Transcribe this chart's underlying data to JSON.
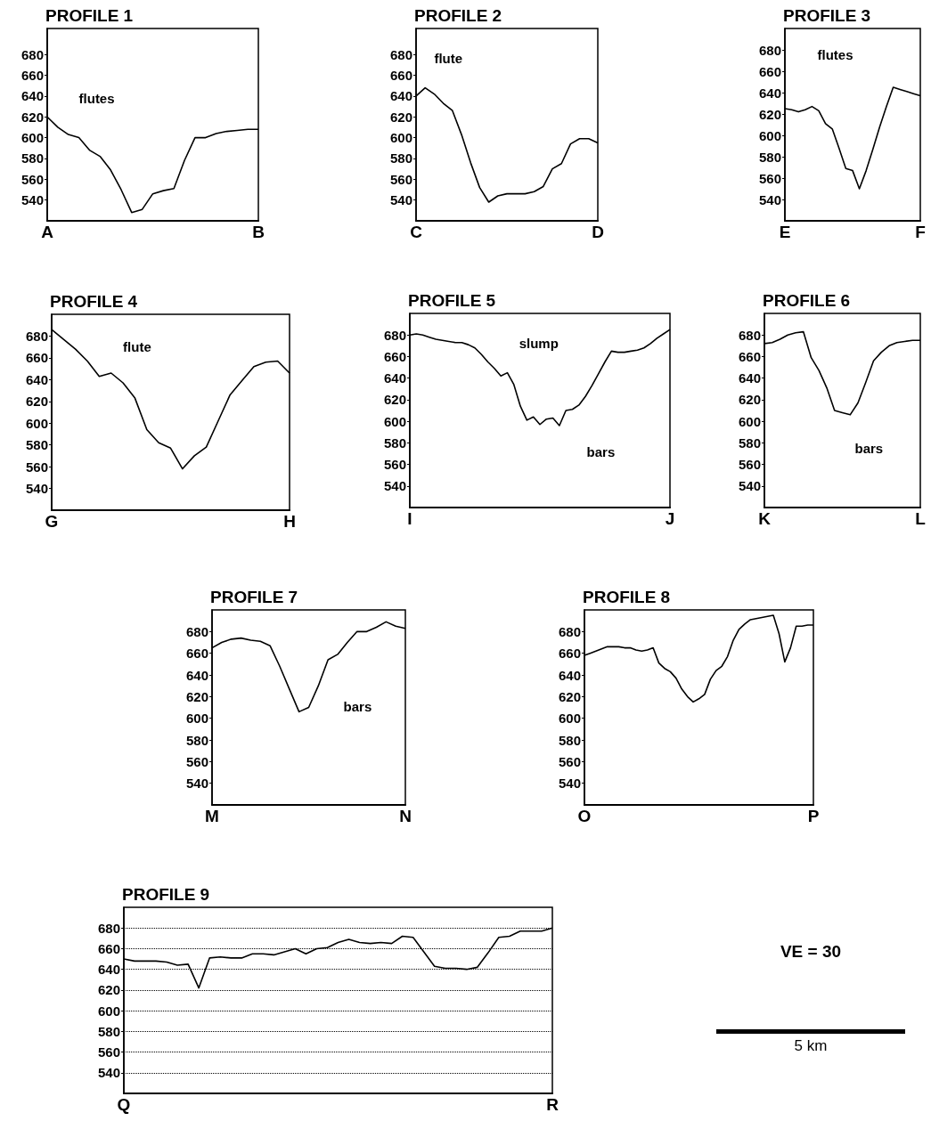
{
  "chart_data": [
    {
      "type": "line",
      "title": "PROFILE 1",
      "categories": [
        "A",
        null,
        null,
        null,
        null,
        null,
        null,
        null,
        null,
        null,
        null,
        null,
        null,
        null,
        null,
        null,
        null,
        null,
        null,
        null,
        "B"
      ],
      "values": [
        620,
        610,
        603,
        600,
        588,
        582,
        569,
        550,
        528,
        531,
        546,
        549,
        551,
        578,
        600,
        600,
        604,
        606,
        607,
        608,
        608
      ],
      "ylim": [
        520,
        705
      ],
      "yticks": [
        540,
        560,
        580,
        600,
        620,
        640,
        660,
        680
      ],
      "marker": "none",
      "annotations": [
        "flutes"
      ]
    },
    {
      "type": "line",
      "title": "PROFILE 2",
      "categories": [
        "C",
        null,
        null,
        null,
        null,
        null,
        null,
        null,
        null,
        null,
        null,
        null,
        null,
        null,
        null,
        null,
        null,
        null,
        null,
        null,
        "D"
      ],
      "values": [
        640,
        648,
        642,
        633,
        626,
        603,
        576,
        552,
        538,
        544,
        546,
        546,
        546,
        548,
        553,
        570,
        575,
        594,
        599,
        599,
        595
      ],
      "ylim": [
        520,
        705
      ],
      "yticks": [
        540,
        560,
        580,
        600,
        620,
        640,
        660,
        680
      ],
      "marker": "none",
      "annotations": [
        "flute"
      ]
    },
    {
      "type": "line",
      "title": "PROFILE 3",
      "categories": [
        "E",
        null,
        null,
        null,
        null,
        null,
        null,
        null,
        null,
        null,
        null,
        null,
        null,
        null,
        null,
        null,
        null,
        null,
        null,
        null,
        "F"
      ],
      "values": [
        625,
        624,
        622,
        624,
        627,
        623,
        611,
        606,
        588,
        569,
        567,
        550,
        567,
        587,
        608,
        627,
        645,
        643,
        641,
        639,
        637
      ],
      "ylim": [
        520,
        700
      ],
      "yticks": [
        540,
        560,
        580,
        600,
        620,
        640,
        660,
        680
      ],
      "marker": "none",
      "annotations": [
        "flutes"
      ]
    },
    {
      "type": "line",
      "title": "PROFILE 4",
      "categories": [
        "G",
        null,
        null,
        null,
        null,
        null,
        null,
        null,
        null,
        null,
        null,
        null,
        null,
        null,
        null,
        null,
        null,
        null,
        null,
        null,
        "H"
      ],
      "values": [
        686,
        677,
        668,
        657,
        643,
        646,
        637,
        623,
        594,
        582,
        577,
        558,
        570,
        578,
        602,
        626,
        639,
        652,
        656,
        657,
        646
      ],
      "ylim": [
        520,
        700
      ],
      "yticks": [
        540,
        560,
        580,
        600,
        620,
        640,
        660,
        680
      ],
      "marker": "none",
      "annotations": [
        "flute"
      ]
    },
    {
      "type": "line",
      "title": "PROFILE 5",
      "categories": [
        "I",
        null,
        null,
        null,
        null,
        null,
        null,
        null,
        null,
        null,
        null,
        null,
        null,
        null,
        null,
        null,
        null,
        null,
        null,
        null,
        null,
        null,
        null,
        null,
        null,
        null,
        null,
        null,
        null,
        null,
        null,
        null,
        null,
        null,
        null,
        null,
        null,
        null,
        null,
        null,
        "J"
      ],
      "values": [
        680,
        681,
        680,
        678,
        676,
        675,
        674,
        673,
        673,
        671,
        668,
        662,
        655,
        649,
        642,
        645,
        634,
        614,
        601,
        604,
        597,
        602,
        603,
        596,
        610,
        611,
        615,
        623,
        633,
        644,
        655,
        665,
        664,
        664,
        665,
        666,
        668,
        672,
        677,
        681,
        685
      ],
      "ylim": [
        520,
        700
      ],
      "yticks": [
        540,
        560,
        580,
        600,
        620,
        640,
        660,
        680
      ],
      "marker": "none",
      "annotations": [
        "slump",
        "bars"
      ]
    },
    {
      "type": "line",
      "title": "PROFILE 6",
      "categories": [
        "K",
        null,
        null,
        null,
        null,
        null,
        null,
        null,
        null,
        null,
        null,
        null,
        null,
        null,
        null,
        null,
        null,
        null,
        null,
        null,
        "L"
      ],
      "values": [
        672,
        673,
        676,
        680,
        682,
        683,
        659,
        647,
        631,
        610,
        608,
        606,
        617,
        636,
        656,
        664,
        670,
        673,
        674,
        675,
        675
      ],
      "ylim": [
        520,
        700
      ],
      "yticks": [
        540,
        560,
        580,
        600,
        620,
        640,
        660,
        680
      ],
      "marker": "none",
      "annotations": [
        "bars"
      ]
    },
    {
      "type": "line",
      "title": "PROFILE 7",
      "categories": [
        "M",
        null,
        null,
        null,
        null,
        null,
        null,
        null,
        null,
        null,
        null,
        null,
        null,
        null,
        null,
        null,
        null,
        null,
        null,
        null,
        "N"
      ],
      "values": [
        665,
        670,
        673,
        674,
        672,
        671,
        667,
        648,
        627,
        606,
        610,
        630,
        654,
        659,
        670,
        680,
        680,
        684,
        689,
        685,
        683
      ],
      "ylim": [
        520,
        700
      ],
      "yticks": [
        540,
        560,
        580,
        600,
        620,
        640,
        660,
        680
      ],
      "marker": "none",
      "annotations": [
        "bars"
      ]
    },
    {
      "type": "line",
      "title": "PROFILE 8",
      "categories": [
        "O",
        null,
        null,
        null,
        null,
        null,
        null,
        null,
        null,
        null,
        null,
        null,
        null,
        null,
        null,
        null,
        null,
        null,
        null,
        null,
        null,
        null,
        null,
        null,
        null,
        null,
        null,
        null,
        null,
        null,
        null,
        null,
        null,
        null,
        null,
        null,
        null,
        null,
        null,
        null,
        "P"
      ],
      "values": [
        658,
        660,
        662,
        664,
        666,
        666,
        666,
        665,
        665,
        663,
        662,
        663,
        665,
        651,
        646,
        643,
        637,
        627,
        620,
        615,
        618,
        622,
        636,
        644,
        648,
        657,
        672,
        682,
        687,
        691,
        692,
        693,
        694,
        695,
        678,
        652,
        665,
        685,
        685,
        686,
        686
      ],
      "ylim": [
        520,
        700
      ],
      "yticks": [
        540,
        560,
        580,
        600,
        620,
        640,
        660,
        680
      ],
      "marker": "none"
    },
    {
      "type": "line",
      "title": "PROFILE 9",
      "categories": [
        "Q",
        null,
        null,
        null,
        null,
        null,
        null,
        null,
        null,
        null,
        null,
        null,
        null,
        null,
        null,
        null,
        null,
        null,
        null,
        null,
        null,
        null,
        null,
        null,
        null,
        null,
        null,
        null,
        null,
        null,
        null,
        null,
        null,
        null,
        null,
        null,
        null,
        null,
        null,
        null,
        "R"
      ],
      "values": [
        650,
        648,
        648,
        648,
        647,
        644,
        645,
        622,
        651,
        652,
        651,
        651,
        655,
        655,
        654,
        657,
        660,
        655,
        660,
        661,
        666,
        669,
        666,
        665,
        666,
        665,
        672,
        671,
        657,
        643,
        641,
        641,
        640,
        642,
        656,
        671,
        672,
        677,
        677,
        677,
        680
      ],
      "ylim": [
        520,
        700
      ],
      "yticks": [
        540,
        560,
        580,
        600,
        620,
        640,
        660,
        680
      ],
      "marker": "none",
      "grid": "y"
    },
    {
      "type": "other",
      "annotations": [
        "VE = 30",
        "5 km"
      ]
    }
  ]
}
